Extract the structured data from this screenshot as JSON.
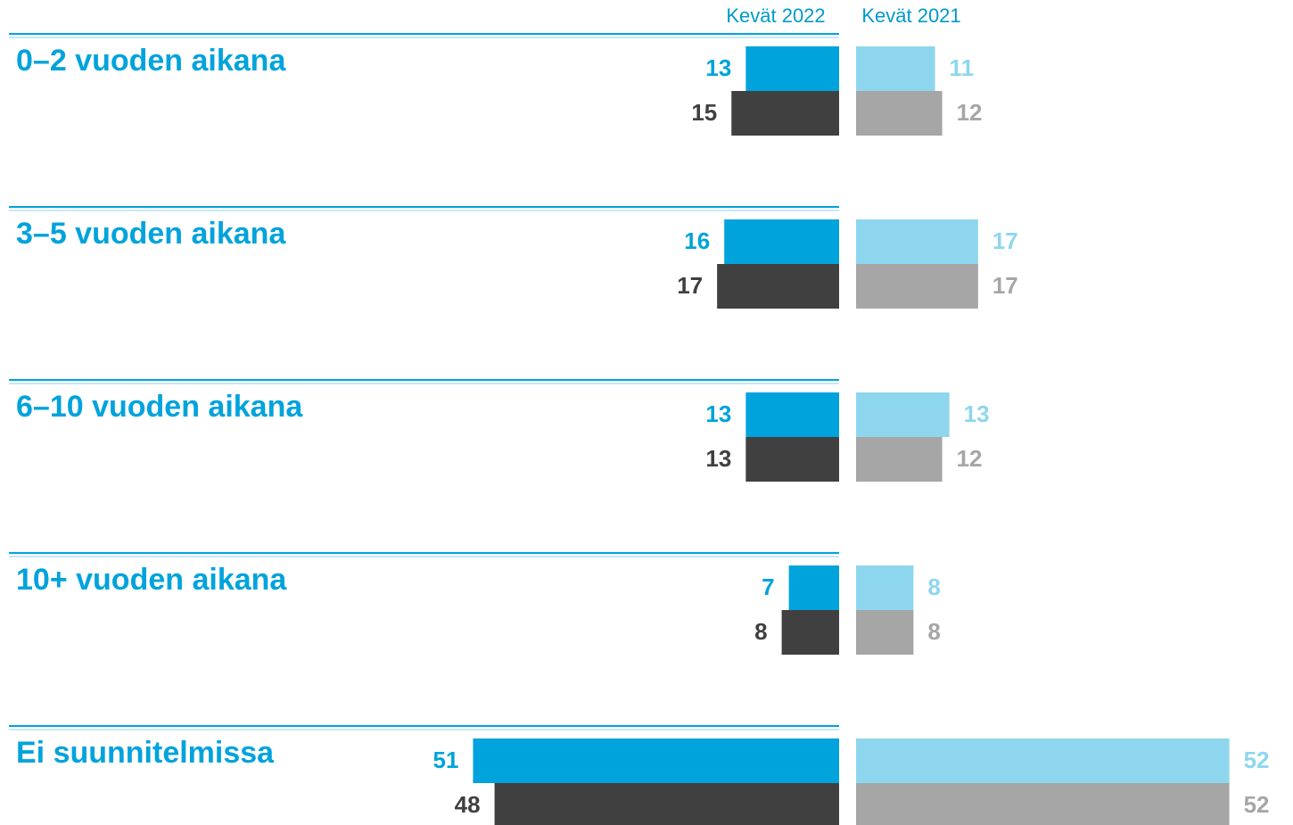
{
  "chart_data": {
    "type": "butterfly-bar",
    "categories": [
      "0–2 vuoden aikana",
      "3–5 vuoden aikana",
      "6–10 vuoden aikana",
      "10+ vuoden aikana",
      "Ei suunnitelmissa"
    ],
    "panels": [
      {
        "name": "Kevät 2022",
        "side": "left",
        "series": [
          {
            "color": "#00a3dc",
            "values": [
              13,
              16,
              13,
              7,
              51
            ]
          },
          {
            "color": "#404040",
            "values": [
              15,
              17,
              13,
              8,
              48
            ]
          }
        ]
      },
      {
        "name": "Kevät 2021",
        "side": "right",
        "series": [
          {
            "color": "#8ed6ee",
            "values": [
              11,
              17,
              13,
              8,
              52
            ]
          },
          {
            "color": "#a6a6a6",
            "values": [
              12,
              17,
              12,
              8,
              52
            ]
          }
        ]
      }
    ]
  }
}
